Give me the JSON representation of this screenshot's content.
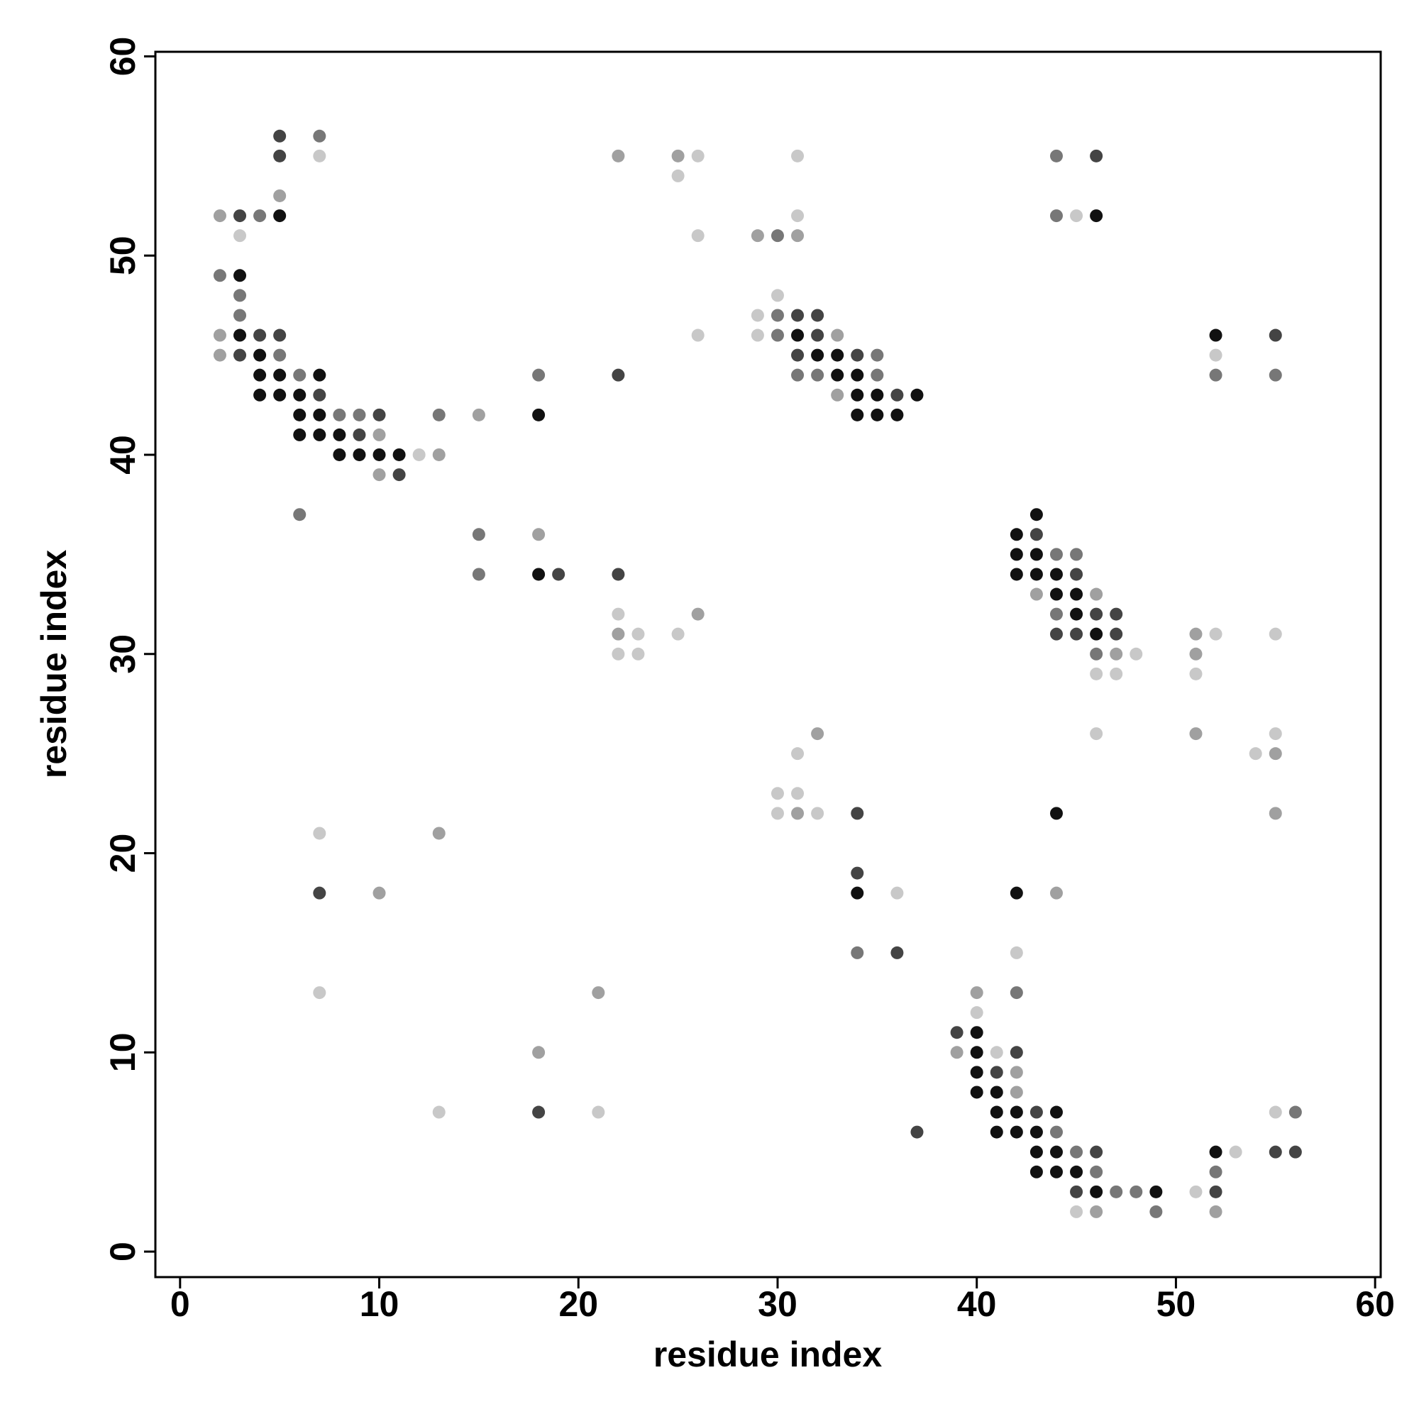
{
  "chart_data": {
    "type": "scatter",
    "x_label": "residue index",
    "y_label": "residue index",
    "xlim": [
      -1.24,
      60.28
    ],
    "ylim": [
      -1.28,
      60.23
    ],
    "xticks": [
      0,
      10,
      20,
      30,
      40,
      50,
      60
    ],
    "yticks": [
      0,
      10,
      20,
      30,
      40,
      50,
      60
    ],
    "x": [
      5,
      7,
      5,
      7,
      22,
      25,
      26,
      31,
      44,
      46,
      25,
      5,
      2,
      3,
      4,
      5,
      31,
      44,
      45,
      46,
      3,
      26,
      29,
      30,
      31,
      2,
      3,
      3,
      30,
      3,
      29,
      30,
      31,
      32,
      2,
      3,
      4,
      5,
      26,
      29,
      30,
      31,
      32,
      33,
      52,
      55,
      2,
      3,
      4,
      5,
      31,
      32,
      33,
      34,
      35,
      52,
      4,
      5,
      6,
      7,
      18,
      22,
      31,
      32,
      33,
      34,
      35,
      52,
      55,
      4,
      5,
      6,
      7,
      33,
      34,
      35,
      36,
      37,
      6,
      7,
      8,
      9,
      10,
      13,
      15,
      18,
      34,
      35,
      36,
      6,
      7,
      8,
      9,
      10,
      8,
      9,
      10,
      11,
      12,
      13,
      10,
      11,
      6,
      43,
      15,
      18,
      42,
      43,
      42,
      43,
      44,
      45,
      15,
      18,
      19,
      22,
      42,
      43,
      44,
      45,
      43,
      44,
      45,
      46,
      22,
      26,
      44,
      45,
      46,
      47,
      22,
      23,
      25,
      44,
      45,
      46,
      47,
      51,
      52,
      55,
      22,
      23,
      46,
      47,
      48,
      51,
      46,
      47,
      51,
      32,
      46,
      51,
      55,
      31,
      54,
      55,
      30,
      31,
      30,
      31,
      32,
      34,
      44,
      55,
      7,
      13,
      34,
      7,
      10,
      34,
      36,
      42,
      44,
      34,
      36,
      42,
      7,
      21,
      40,
      42,
      40,
      39,
      40,
      18,
      39,
      40,
      41,
      42,
      40,
      41,
      42,
      40,
      41,
      42,
      13,
      18,
      21,
      41,
      42,
      43,
      44,
      55,
      56,
      37,
      41,
      42,
      43,
      44,
      43,
      44,
      45,
      46,
      52,
      53,
      55,
      56,
      43,
      44,
      45,
      46,
      52,
      45,
      46,
      47,
      48,
      49,
      51,
      52,
      45,
      46,
      49,
      52
    ],
    "y": [
      56,
      56,
      55,
      55,
      55,
      55,
      55,
      55,
      55,
      55,
      54,
      53,
      52,
      52,
      52,
      52,
      52,
      52,
      52,
      52,
      51,
      51,
      51,
      51,
      51,
      49,
      49,
      48,
      48,
      47,
      47,
      47,
      47,
      47,
      46,
      46,
      46,
      46,
      46,
      46,
      46,
      46,
      46,
      46,
      46,
      46,
      45,
      45,
      45,
      45,
      45,
      45,
      45,
      45,
      45,
      45,
      44,
      44,
      44,
      44,
      44,
      44,
      44,
      44,
      44,
      44,
      44,
      44,
      44,
      43,
      43,
      43,
      43,
      43,
      43,
      43,
      43,
      43,
      42,
      42,
      42,
      42,
      42,
      42,
      42,
      42,
      42,
      42,
      42,
      41,
      41,
      41,
      41,
      41,
      40,
      40,
      40,
      40,
      40,
      40,
      39,
      39,
      37,
      37,
      36,
      36,
      36,
      36,
      35,
      35,
      35,
      35,
      34,
      34,
      34,
      34,
      34,
      34,
      34,
      34,
      33,
      33,
      33,
      33,
      32,
      32,
      32,
      32,
      32,
      32,
      31,
      31,
      31,
      31,
      31,
      31,
      31,
      31,
      31,
      31,
      30,
      30,
      30,
      30,
      30,
      30,
      29,
      29,
      29,
      26,
      26,
      26,
      26,
      25,
      25,
      25,
      23,
      23,
      22,
      22,
      22,
      22,
      22,
      22,
      21,
      21,
      19,
      18,
      18,
      18,
      18,
      18,
      18,
      15,
      15,
      15,
      13,
      13,
      13,
      13,
      12,
      11,
      11,
      10,
      10,
      10,
      10,
      10,
      9,
      9,
      9,
      8,
      8,
      8,
      7,
      7,
      7,
      7,
      7,
      7,
      7,
      7,
      7,
      6,
      6,
      6,
      6,
      6,
      5,
      5,
      5,
      5,
      5,
      5,
      5,
      5,
      4,
      4,
      4,
      4,
      4,
      3,
      3,
      3,
      3,
      3,
      3,
      3,
      2,
      2,
      2,
      2
    ],
    "colors": [
      "#444444",
      "#777777",
      "#444444",
      "#c8c8c8",
      "#a0a0a0",
      "#a0a0a0",
      "#c8c8c8",
      "#c8c8c8",
      "#777777",
      "#444444",
      "#c8c8c8",
      "#a0a0a0",
      "#a0a0a0",
      "#444444",
      "#777777",
      "#111111",
      "#c8c8c8",
      "#777777",
      "#c8c8c8",
      "#111111",
      "#c8c8c8",
      "#c8c8c8",
      "#a0a0a0",
      "#777777",
      "#a0a0a0",
      "#777777",
      "#111111",
      "#777777",
      "#c8c8c8",
      "#777777",
      "#c8c8c8",
      "#777777",
      "#444444",
      "#444444",
      "#a0a0a0",
      "#111111",
      "#444444",
      "#444444",
      "#c8c8c8",
      "#c8c8c8",
      "#777777",
      "#111111",
      "#444444",
      "#a0a0a0",
      "#111111",
      "#444444",
      "#a0a0a0",
      "#444444",
      "#111111",
      "#777777",
      "#444444",
      "#111111",
      "#111111",
      "#444444",
      "#777777",
      "#c8c8c8",
      "#111111",
      "#111111",
      "#777777",
      "#111111",
      "#777777",
      "#444444",
      "#777777",
      "#777777",
      "#111111",
      "#111111",
      "#777777",
      "#777777",
      "#777777",
      "#111111",
      "#111111",
      "#111111",
      "#444444",
      "#a0a0a0",
      "#111111",
      "#111111",
      "#444444",
      "#111111",
      "#111111",
      "#111111",
      "#777777",
      "#777777",
      "#444444",
      "#777777",
      "#a0a0a0",
      "#111111",
      "#111111",
      "#111111",
      "#111111",
      "#111111",
      "#111111",
      "#111111",
      "#444444",
      "#a0a0a0",
      "#111111",
      "#111111",
      "#111111",
      "#111111",
      "#c8c8c8",
      "#a0a0a0",
      "#a0a0a0",
      "#444444",
      "#777777",
      "#111111",
      "#777777",
      "#a0a0a0",
      "#111111",
      "#444444",
      "#111111",
      "#111111",
      "#777777",
      "#777777",
      "#777777",
      "#111111",
      "#444444",
      "#444444",
      "#111111",
      "#111111",
      "#111111",
      "#444444",
      "#a0a0a0",
      "#111111",
      "#111111",
      "#a0a0a0",
      "#c8c8c8",
      "#a0a0a0",
      "#777777",
      "#111111",
      "#444444",
      "#444444",
      "#a0a0a0",
      "#c8c8c8",
      "#c8c8c8",
      "#444444",
      "#444444",
      "#111111",
      "#444444",
      "#a0a0a0",
      "#c8c8c8",
      "#c8c8c8",
      "#c8c8c8",
      "#c8c8c8",
      "#777777",
      "#a0a0a0",
      "#c8c8c8",
      "#a0a0a0",
      "#c8c8c8",
      "#c8c8c8",
      "#c8c8c8",
      "#a0a0a0",
      "#c8c8c8",
      "#a0a0a0",
      "#c8c8c8",
      "#c8c8c8",
      "#c8c8c8",
      "#a0a0a0",
      "#c8c8c8",
      "#c8c8c8",
      "#c8c8c8",
      "#a0a0a0",
      "#c8c8c8",
      "#444444",
      "#111111",
      "#a0a0a0",
      "#c8c8c8",
      "#a0a0a0",
      "#444444",
      "#444444",
      "#a0a0a0",
      "#111111",
      "#c8c8c8",
      "#111111",
      "#a0a0a0",
      "#777777",
      "#444444",
      "#c8c8c8",
      "#c8c8c8",
      "#a0a0a0",
      "#a0a0a0",
      "#777777",
      "#c8c8c8",
      "#444444",
      "#111111",
      "#a0a0a0",
      "#a0a0a0",
      "#111111",
      "#c8c8c8",
      "#444444",
      "#111111",
      "#444444",
      "#a0a0a0",
      "#111111",
      "#111111",
      "#a0a0a0",
      "#c8c8c8",
      "#444444",
      "#c8c8c8",
      "#111111",
      "#111111",
      "#444444",
      "#111111",
      "#c8c8c8",
      "#777777",
      "#444444",
      "#111111",
      "#111111",
      "#111111",
      "#777777",
      "#111111",
      "#111111",
      "#777777",
      "#444444",
      "#111111",
      "#c8c8c8",
      "#444444",
      "#444444",
      "#111111",
      "#111111",
      "#111111",
      "#777777",
      "#777777",
      "#444444",
      "#111111",
      "#777777",
      "#777777",
      "#111111",
      "#c8c8c8",
      "#444444",
      "#c8c8c8",
      "#a0a0a0",
      "#777777",
      "#a0a0a0"
    ]
  }
}
